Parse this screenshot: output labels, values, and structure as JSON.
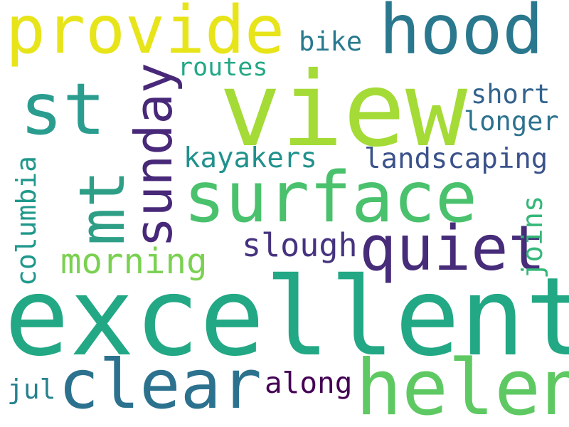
{
  "words": {
    "excellent": {
      "text": "excellent",
      "color": "#22a884"
    },
    "view": {
      "text": "view",
      "color": "#a5db36"
    },
    "surface": {
      "text": "surface",
      "color": "#4ac16d"
    },
    "provide": {
      "text": "provide",
      "color": "#e7e419"
    },
    "hood": {
      "text": "hood",
      "color": "#2a788e"
    },
    "helen": {
      "text": "helen",
      "color": "#5ec962"
    },
    "clear": {
      "text": "clear",
      "color": "#2c728e"
    },
    "st": {
      "text": "st",
      "color": "#2a9d8f"
    },
    "mt": {
      "text": "mt",
      "color": "#2e9f86"
    },
    "sunday": {
      "text": "sunday",
      "color": "#482878"
    },
    "quiet": {
      "text": "quiet",
      "color": "#472c7a"
    },
    "morning": {
      "text": "morning",
      "color": "#7ad151"
    },
    "kayakers": {
      "text": "kayakers",
      "color": "#21918c"
    },
    "landscaping": {
      "text": "landscaping",
      "color": "#3b528b"
    },
    "short": {
      "text": "short",
      "color": "#33638d"
    },
    "longer": {
      "text": "longer",
      "color": "#2c728e"
    },
    "slough": {
      "text": "slough",
      "color": "#46337f"
    },
    "joins": {
      "text": "joins",
      "color": "#35b779"
    },
    "columbia": {
      "text": "columbia",
      "color": "#1f988b"
    },
    "routes": {
      "text": "routes",
      "color": "#22a884"
    },
    "bike": {
      "text": "bike",
      "color": "#29798e"
    },
    "along": {
      "text": "along",
      "color": "#440154"
    },
    "jul": {
      "text": "jul",
      "color": "#26828e"
    }
  }
}
